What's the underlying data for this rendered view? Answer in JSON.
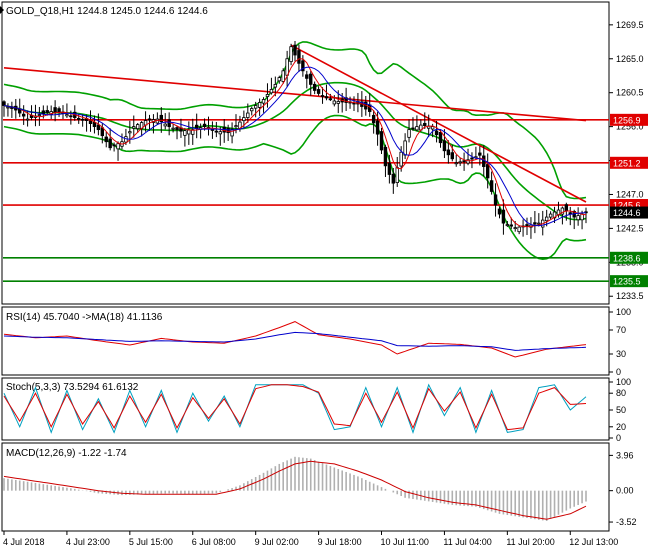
{
  "chart_data": [
    {
      "type": "candlestick",
      "title": "GOLD_Q18,H1",
      "ohlc_readout": "1244.8 1245.0 1244.6 1244.6",
      "ylim": [
        1233.0,
        1272.0
      ],
      "y_ticks": [
        1269.5,
        1265.0,
        1260.5,
        1256.0,
        1251.5,
        1247.0,
        1242.5,
        1238.0,
        1233.5
      ],
      "y_tick_labels": [
        "1269.5",
        "1265.0",
        "1260.5",
        "1256.0",
        "1251.5",
        "1247.0",
        "1242.5",
        "1238.0",
        "1233.5"
      ],
      "current_price": 1244.6,
      "current_price_label": "1244.6",
      "horizontal_levels": [
        {
          "value": 1256.9,
          "label": "1256.9",
          "color": "#e00000"
        },
        {
          "value": 1251.2,
          "label": "1251.2",
          "color": "#e00000"
        },
        {
          "value": 1245.6,
          "label": "1245.6",
          "color": "#e00000"
        },
        {
          "value": 1238.6,
          "label": "1238.6",
          "color": "#008000"
        },
        {
          "value": 1235.5,
          "label": "1235.5",
          "color": "#008000"
        }
      ],
      "trend_lines": [
        {
          "from": [
            0,
            1263.8
          ],
          "to": [
            148,
            1256.8
          ],
          "color": "#e00000"
        },
        {
          "from": [
            73,
            1266.8
          ],
          "to": [
            148,
            1246.0
          ],
          "color": "#e00000"
        }
      ],
      "close_path": [
        [
          0,
          1258.8
        ],
        [
          3,
          1258.2
        ],
        [
          6,
          1257.0
        ],
        [
          9,
          1257.6
        ],
        [
          12,
          1258.0
        ],
        [
          15,
          1257.8
        ],
        [
          18,
          1257.2
        ],
        [
          21,
          1256.8
        ],
        [
          24,
          1255.6
        ],
        [
          27,
          1253.2
        ],
        [
          30,
          1254.0
        ],
        [
          33,
          1256.0
        ],
        [
          36,
          1256.8
        ],
        [
          39,
          1257.0
        ],
        [
          42,
          1256.0
        ],
        [
          45,
          1255.4
        ],
        [
          48,
          1255.6
        ],
        [
          51,
          1256.0
        ],
        [
          54,
          1255.4
        ],
        [
          57,
          1255.2
        ],
        [
          60,
          1256.6
        ],
        [
          63,
          1258.4
        ],
        [
          66,
          1259.6
        ],
        [
          69,
          1261.6
        ],
        [
          71,
          1263.4
        ],
        [
          73,
          1266.6
        ],
        [
          75,
          1264.4
        ],
        [
          77,
          1262.4
        ],
        [
          79,
          1260.8
        ],
        [
          81,
          1260.0
        ],
        [
          84,
          1259.4
        ],
        [
          87,
          1259.2
        ],
        [
          90,
          1259.0
        ],
        [
          93,
          1258.0
        ],
        [
          95,
          1255.0
        ],
        [
          97,
          1250.8
        ],
        [
          99,
          1248.5
        ],
        [
          101,
          1252.6
        ],
        [
          103,
          1255.6
        ],
        [
          106,
          1256.2
        ],
        [
          109,
          1256.0
        ],
        [
          112,
          1252.8
        ],
        [
          115,
          1251.2
        ],
        [
          118,
          1251.6
        ],
        [
          121,
          1252.2
        ],
        [
          123,
          1249.2
        ],
        [
          125,
          1245.6
        ],
        [
          127,
          1243.2
        ],
        [
          130,
          1242.6
        ],
        [
          133,
          1242.8
        ],
        [
          136,
          1243.2
        ],
        [
          139,
          1244.4
        ],
        [
          142,
          1245.2
        ],
        [
          145,
          1244.0
        ],
        [
          148,
          1244.6
        ]
      ]
    },
    {
      "type": "line",
      "title": "RSI(14) 45.7040 ->MA(18) 41.1136",
      "ylim": [
        0,
        100
      ],
      "y_ticks": [
        100,
        70,
        30,
        0
      ],
      "y_tick_labels": [
        "100",
        "70",
        "30",
        "0"
      ],
      "x": [
        0,
        8,
        16,
        24,
        32,
        40,
        48,
        56,
        64,
        70,
        74,
        80,
        88,
        96,
        100,
        108,
        116,
        124,
        130,
        138,
        148
      ],
      "series": [
        {
          "values": [
            63,
            57,
            60,
            52,
            45,
            56,
            50,
            48,
            60,
            74,
            84,
            62,
            55,
            45,
            30,
            48,
            46,
            40,
            25,
            38,
            45.7
          ],
          "color": "#e00000"
        },
        {
          "values": [
            60,
            58,
            57,
            54,
            51,
            52,
            51,
            50,
            55,
            62,
            66,
            64,
            58,
            52,
            44,
            43,
            44,
            42,
            36,
            39,
            41.1
          ],
          "color": "#0000cc"
        }
      ]
    },
    {
      "type": "line",
      "title": "Stoch(5,3,3) 73.5294 61.6132",
      "ylim": [
        0,
        100
      ],
      "y_ticks": [
        100,
        80,
        50,
        20,
        0
      ],
      "y_tick_labels": [
        "100",
        "80",
        "50",
        "20",
        "0"
      ],
      "x": [
        0,
        4,
        8,
        12,
        16,
        20,
        24,
        28,
        32,
        36,
        40,
        44,
        48,
        52,
        56,
        60,
        64,
        68,
        72,
        76,
        80,
        84,
        88,
        92,
        96,
        100,
        104,
        108,
        112,
        116,
        120,
        124,
        128,
        132,
        136,
        140,
        144,
        148
      ],
      "series": [
        {
          "values": [
            80,
            20,
            90,
            10,
            85,
            15,
            70,
            10,
            85,
            20,
            85,
            10,
            80,
            30,
            75,
            20,
            95,
            95,
            95,
            95,
            80,
            15,
            20,
            90,
            20,
            90,
            10,
            95,
            40,
            90,
            10,
            85,
            10,
            15,
            90,
            95,
            50,
            73.5
          ],
          "color": "#00a0c0"
        },
        {
          "values": [
            75,
            30,
            80,
            20,
            78,
            25,
            65,
            18,
            75,
            28,
            78,
            18,
            72,
            35,
            70,
            25,
            88,
            95,
            95,
            92,
            82,
            25,
            22,
            80,
            28,
            82,
            18,
            88,
            48,
            82,
            18,
            78,
            15,
            18,
            80,
            90,
            60,
            61.6
          ],
          "color": "#e00000"
        }
      ]
    },
    {
      "type": "bar",
      "title": "MACD(12,26,9) -1.22 -1.74",
      "ylim": [
        -4.3,
        4.9
      ],
      "y_ticks": [
        3.96,
        0.0,
        -3.52
      ],
      "y_tick_labels": [
        "3.96",
        "0.00",
        "-3.52"
      ],
      "x": [
        0,
        6,
        12,
        18,
        24,
        30,
        36,
        42,
        48,
        54,
        60,
        66,
        70,
        74,
        78,
        84,
        90,
        96,
        102,
        108,
        114,
        120,
        126,
        132,
        138,
        144,
        148
      ],
      "histogram": [
        1.4,
        1.0,
        0.6,
        0.2,
        -0.3,
        -0.5,
        -0.4,
        -0.3,
        -0.4,
        -0.3,
        0.6,
        2.0,
        3.0,
        3.8,
        3.6,
        2.6,
        1.6,
        0.4,
        -0.8,
        -1.2,
        -1.6,
        -1.8,
        -2.6,
        -3.0,
        -3.4,
        -2.0,
        -1.22
      ],
      "signal": [
        1.6,
        1.2,
        0.8,
        0.4,
        0.0,
        -0.3,
        -0.4,
        -0.4,
        -0.4,
        -0.4,
        0.2,
        1.3,
        2.2,
        3.0,
        3.3,
        3.0,
        2.2,
        1.2,
        -0.1,
        -0.8,
        -1.3,
        -1.6,
        -2.2,
        -2.8,
        -3.2,
        -2.6,
        -1.74
      ],
      "signal_color": "#cc0000"
    }
  ],
  "x_axis": {
    "labels": [
      "4 Jul 2018",
      "4 Jul 23:00",
      "5 Jul 15:00",
      "6 Jul 08:00",
      "9 Jul 02:00",
      "9 Jul 18:00",
      "10 Jul 11:00",
      "11 Jul 04:00",
      "11 Jul 20:00",
      "12 Jul 13:00"
    ],
    "positions": [
      0,
      16,
      32,
      48,
      64,
      80,
      96,
      112,
      128,
      144
    ]
  },
  "colors": {
    "candles": "#000000",
    "bollinger": "#00a000",
    "fast_ma": "#e00000",
    "slow_ma": "#0000cc",
    "grid_border": "#000000",
    "price_tag_bg": "#000000"
  }
}
